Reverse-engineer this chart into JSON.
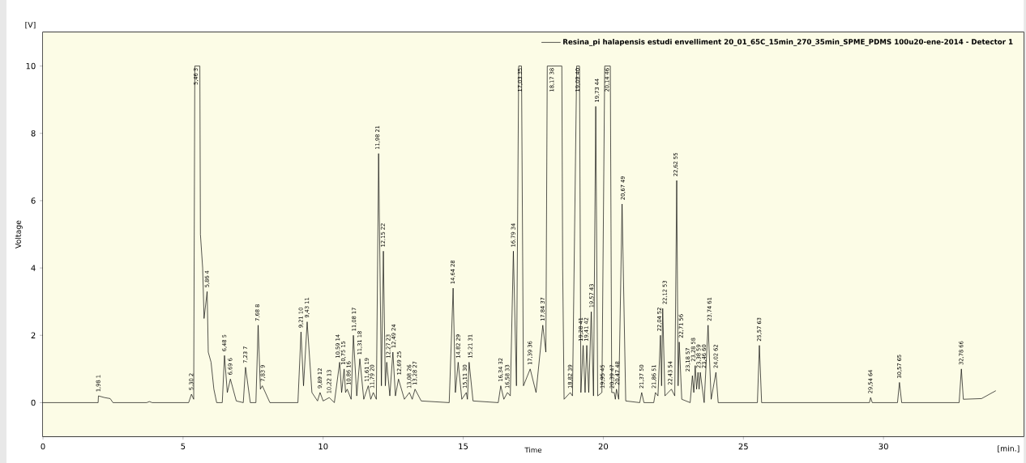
{
  "chart_data": {
    "type": "line",
    "xlabel": "Time",
    "ylabel": "Voltage",
    "xlim": [
      0,
      35
    ],
    "ylim": [
      -1,
      11
    ],
    "xticks": [
      0,
      5,
      10,
      15,
      20,
      25,
      30
    ],
    "yticks": [
      0,
      2,
      4,
      6,
      8,
      10
    ],
    "grid": false,
    "legend": "top right",
    "marker": "none",
    "line_style": "solid",
    "series": [
      {
        "name": "Resina_pi halapensis estudi envelliment 20_01_65C_15min_270_35min_SPME_PDMS 100u20-ene-2014 - Detector 1",
        "color": "#000000",
        "x": [
          0,
          1.97,
          1.98,
          2.2,
          2.4,
          2.5,
          3.7,
          3.8,
          3.9,
          5.2,
          5.3,
          5.38,
          5.42,
          5.6,
          5.62,
          5.7,
          5.75,
          5.86,
          5.9,
          6.0,
          6.1,
          6.2,
          6.4,
          6.48,
          6.58,
          6.69,
          6.9,
          7.15,
          7.23,
          7.4,
          7.6,
          7.68,
          7.76,
          7.83,
          8.1,
          9.1,
          9.21,
          9.3,
          9.43,
          9.6,
          9.8,
          9.89,
          10.0,
          10.22,
          10.4,
          10.59,
          10.66,
          10.75,
          10.8,
          10.86,
          11.0,
          11.08,
          11.2,
          11.31,
          11.45,
          11.61,
          11.7,
          11.79,
          11.9,
          11.98,
          12.08,
          12.15,
          12.22,
          12.27,
          12.38,
          12.49,
          12.58,
          12.69,
          12.9,
          13.08,
          13.18,
          13.28,
          13.5,
          14.5,
          14.64,
          14.72,
          14.82,
          14.95,
          15.11,
          15.15,
          15.21,
          15.35,
          16.25,
          16.34,
          16.45,
          16.58,
          16.68,
          16.79,
          16.9,
          16.98,
          17.08,
          17.15,
          17.39,
          17.6,
          17.84,
          17.95,
          18.0,
          18.52,
          18.55,
          18.6,
          18.82,
          18.9,
          19.05,
          19.15,
          19.2,
          19.28,
          19.35,
          19.41,
          19.48,
          19.57,
          19.65,
          19.73,
          19.8,
          19.95,
          20.05,
          20.25,
          20.3,
          20.39,
          20.43,
          20.47,
          20.55,
          20.67,
          20.8,
          21.3,
          21.37,
          21.45,
          21.8,
          21.86,
          21.95,
          22.04,
          22.08,
          22.12,
          22.2,
          22.43,
          22.55,
          22.62,
          22.67,
          22.71,
          22.8,
          23.1,
          23.18,
          23.23,
          23.28,
          23.33,
          23.38,
          23.42,
          23.46,
          23.6,
          23.74,
          23.85,
          24.02,
          24.1,
          25.5,
          25.57,
          25.65,
          29.5,
          29.54,
          29.6,
          30.5,
          30.57,
          30.65,
          32.7,
          32.78,
          32.85,
          33.5,
          34.0
        ],
        "values": [
          0,
          0,
          0.2,
          0.15,
          0.12,
          0,
          0,
          0.03,
          0,
          0,
          0.25,
          0.1,
          10,
          10,
          5,
          4,
          2.5,
          3.3,
          1.5,
          1.2,
          0.4,
          0,
          0,
          1.4,
          0.3,
          0.7,
          0.05,
          0,
          1.05,
          0,
          0,
          2.3,
          0.4,
          0.5,
          0,
          0,
          2.1,
          0.5,
          2.4,
          0.3,
          0.05,
          0.3,
          0.05,
          0.15,
          0,
          1.2,
          0.3,
          1.0,
          0.3,
          0.4,
          0.1,
          2.0,
          0.2,
          1.3,
          0.1,
          0.5,
          0.1,
          0.3,
          0.1,
          7.4,
          0.5,
          4.5,
          0.5,
          1.2,
          0.2,
          1.5,
          0.2,
          0.7,
          0.1,
          0.3,
          0.1,
          0.4,
          0.05,
          0,
          3.4,
          0.3,
          1.2,
          0.1,
          0.3,
          0.1,
          1.2,
          0.05,
          0,
          0.5,
          0.1,
          0.3,
          0.2,
          4.5,
          0.5,
          10,
          10,
          0.5,
          1.0,
          0.3,
          2.3,
          1.5,
          10,
          10,
          4.0,
          0.1,
          0.3,
          0.2,
          10,
          10,
          0.3,
          1.7,
          0.3,
          1.7,
          0.3,
          2.7,
          0.2,
          8.8,
          0.2,
          0.3,
          10,
          10,
          0.3,
          0.3,
          0.1,
          0.4,
          0.1,
          5.9,
          0.05,
          0,
          0.3,
          0,
          0,
          0.3,
          0.2,
          2.0,
          0.5,
          2.8,
          0.2,
          0.4,
          0.2,
          6.6,
          0.5,
          1.8,
          0.1,
          0,
          0.8,
          0.3,
          1.1,
          0.4,
          0.9,
          0.4,
          0.9,
          0,
          2.3,
          0.1,
          0.9,
          0,
          0,
          1.7,
          0,
          0,
          0.15,
          0,
          0,
          0.6,
          0,
          0,
          1.0,
          0.1,
          0.12,
          0.35
        ]
      }
    ],
    "annotations": [
      "[V]",
      "[min.]",
      {
        "text": "1,98 1",
        "x": 1.98,
        "y": 0.2
      },
      {
        "text": "5,30 2",
        "x": 5.3,
        "y": 0.25
      },
      {
        "text": "5,46 3",
        "x": 5.46,
        "y": 10
      },
      {
        "text": "5,86 4",
        "x": 5.86,
        "y": 3.3
      },
      {
        "text": "6,48 5",
        "x": 6.48,
        "y": 1.4
      },
      {
        "text": "6,69 6",
        "x": 6.69,
        "y": 0.7
      },
      {
        "text": "7,23 7",
        "x": 7.23,
        "y": 1.05
      },
      {
        "text": "7,68 8",
        "x": 7.68,
        "y": 2.3
      },
      {
        "text": "7,83 9",
        "x": 7.83,
        "y": 0.5
      },
      {
        "text": "9,21 10",
        "x": 9.21,
        "y": 2.1
      },
      {
        "text": "9,43 11",
        "x": 9.43,
        "y": 2.4
      },
      {
        "text": "9,89 12",
        "x": 9.89,
        "y": 0.3
      },
      {
        "text": "10,22 13",
        "x": 10.22,
        "y": 0.15
      },
      {
        "text": "10,59 14",
        "x": 10.59,
        "y": 1.2
      },
      {
        "text": "10,75 15",
        "x": 10.75,
        "y": 1.0
      },
      {
        "text": "10,86 16",
        "x": 10.86,
        "y": 0.4
      },
      {
        "text": "11,08 17",
        "x": 11.08,
        "y": 2.0
      },
      {
        "text": "11,31 18",
        "x": 11.31,
        "y": 1.3
      },
      {
        "text": "11,61 19",
        "x": 11.61,
        "y": 0.5
      },
      {
        "text": "11,79 20",
        "x": 11.79,
        "y": 0.3
      },
      {
        "text": "11,98 21",
        "x": 11.98,
        "y": 7.4
      },
      {
        "text": "12,15 22",
        "x": 12.15,
        "y": 4.5
      },
      {
        "text": "12,27 23",
        "x": 12.27,
        "y": 1.2
      },
      {
        "text": "12,49 24",
        "x": 12.49,
        "y": 1.5
      },
      {
        "text": "12,69 25",
        "x": 12.69,
        "y": 0.7
      },
      {
        "text": "13,08 26",
        "x": 13.08,
        "y": 0.3
      },
      {
        "text": "13,28 27",
        "x": 13.28,
        "y": 0.4
      },
      {
        "text": "14,64 28",
        "x": 14.64,
        "y": 3.4
      },
      {
        "text": "14,82 29",
        "x": 14.82,
        "y": 1.2
      },
      {
        "text": "15,11 30",
        "x": 15.11,
        "y": 0.3
      },
      {
        "text": "15,21 31",
        "x": 15.21,
        "y": 1.2
      },
      {
        "text": "16,34 32",
        "x": 16.34,
        "y": 0.5
      },
      {
        "text": "16,58 33",
        "x": 16.58,
        "y": 0.3
      },
      {
        "text": "16,79 34",
        "x": 16.79,
        "y": 4.5
      },
      {
        "text": "17,03 35",
        "x": 17.03,
        "y": 10
      },
      {
        "text": "17,39 36",
        "x": 17.39,
        "y": 1.0
      },
      {
        "text": "17,84 37",
        "x": 17.84,
        "y": 2.3
      },
      {
        "text": "18,17 38",
        "x": 18.17,
        "y": 10
      },
      {
        "text": "18,82 39",
        "x": 18.82,
        "y": 0.3
      },
      {
        "text": "19,09 40",
        "x": 19.09,
        "y": 10
      },
      {
        "text": "19,28 41",
        "x": 19.28,
        "y": 1.7
      },
      {
        "text": "19,41 42",
        "x": 19.41,
        "y": 1.7
      },
      {
        "text": "19,57 43",
        "x": 19.57,
        "y": 2.7
      },
      {
        "text": "19,73 44",
        "x": 19.73,
        "y": 8.8
      },
      {
        "text": "19,95 45",
        "x": 19.95,
        "y": 0.3
      },
      {
        "text": "20,14 46",
        "x": 20.14,
        "y": 10
      },
      {
        "text": "20,39 47",
        "x": 20.39,
        "y": 0.3
      },
      {
        "text": "20,47 48",
        "x": 20.47,
        "y": 0.4
      },
      {
        "text": "20,67 49",
        "x": 20.67,
        "y": 5.9
      },
      {
        "text": "21,37 50",
        "x": 21.37,
        "y": 0.3
      },
      {
        "text": "21,86 51",
        "x": 21.86,
        "y": 0.3
      },
      {
        "text": "22,04 52",
        "x": 22.04,
        "y": 2.0
      },
      {
        "text": "22,12 53",
        "x": 22.12,
        "y": 2.8
      },
      {
        "text": "22,43 54",
        "x": 22.43,
        "y": 0.4
      },
      {
        "text": "22,62 55",
        "x": 22.62,
        "y": 6.6
      },
      {
        "text": "22,71 56",
        "x": 22.71,
        "y": 1.8
      },
      {
        "text": "23,18 57",
        "x": 23.18,
        "y": 0.8
      },
      {
        "text": "23,28 58",
        "x": 23.28,
        "y": 1.1
      },
      {
        "text": "23,38 59",
        "x": 23.38,
        "y": 0.9
      },
      {
        "text": "23,46 60",
        "x": 23.46,
        "y": 0.9
      },
      {
        "text": "23,74 61",
        "x": 23.74,
        "y": 2.3
      },
      {
        "text": "24,02 62",
        "x": 24.02,
        "y": 0.9
      },
      {
        "text": "25,57 63",
        "x": 25.57,
        "y": 1.7
      },
      {
        "text": "29,54 64",
        "x": 29.54,
        "y": 0.15
      },
      {
        "text": "30,57 65",
        "x": 30.57,
        "y": 0.6
      },
      {
        "text": "32,78 66",
        "x": 32.78,
        "y": 1.0
      }
    ]
  }
}
